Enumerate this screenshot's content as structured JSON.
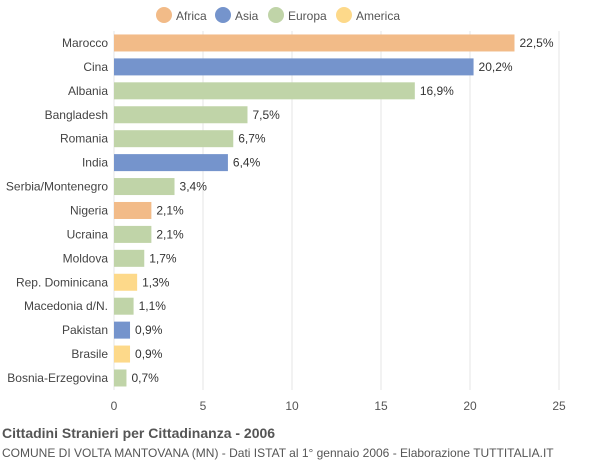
{
  "chart_data": {
    "type": "bar",
    "orientation": "horizontal",
    "categories": [
      "Marocco",
      "Cina",
      "Albania",
      "Bangladesh",
      "Romania",
      "India",
      "Serbia/Montenegro",
      "Nigeria",
      "Ucraina",
      "Moldova",
      "Rep. Dominicana",
      "Macedonia d/N.",
      "Pakistan",
      "Brasile",
      "Bosnia-Erzegovina"
    ],
    "values": [
      22.5,
      20.2,
      16.9,
      7.5,
      6.7,
      6.4,
      3.4,
      2.1,
      2.1,
      1.7,
      1.3,
      1.1,
      0.9,
      0.9,
      0.7
    ],
    "value_labels": [
      "22,5%",
      "20,2%",
      "16,9%",
      "7,5%",
      "6,7%",
      "6,4%",
      "3,4%",
      "2,1%",
      "2,1%",
      "1,7%",
      "1,3%",
      "1,1%",
      "0,9%",
      "0,9%",
      "0,7%"
    ],
    "groups": [
      "Africa",
      "Asia",
      "Europa",
      "Europa",
      "Europa",
      "Asia",
      "Europa",
      "Africa",
      "Europa",
      "Europa",
      "America",
      "Europa",
      "Asia",
      "America",
      "Europa"
    ],
    "legend": [
      {
        "name": "Africa",
        "color": "#f2bb88"
      },
      {
        "name": "Asia",
        "color": "#7594cc"
      },
      {
        "name": "Europa",
        "color": "#c0d4a8"
      },
      {
        "name": "America",
        "color": "#fdd98a"
      }
    ],
    "xlim": [
      0,
      25
    ],
    "xticks": [
      0,
      5,
      10,
      15,
      20,
      25
    ],
    "grid": true,
    "legend_position": "top"
  },
  "footer": {
    "title": "Cittadini Stranieri per Cittadinanza - 2006",
    "subtitle": "COMUNE DI VOLTA MANTOVANA (MN) - Dati ISTAT al 1° gennaio 2006 - Elaborazione TUTTITALIA.IT"
  }
}
